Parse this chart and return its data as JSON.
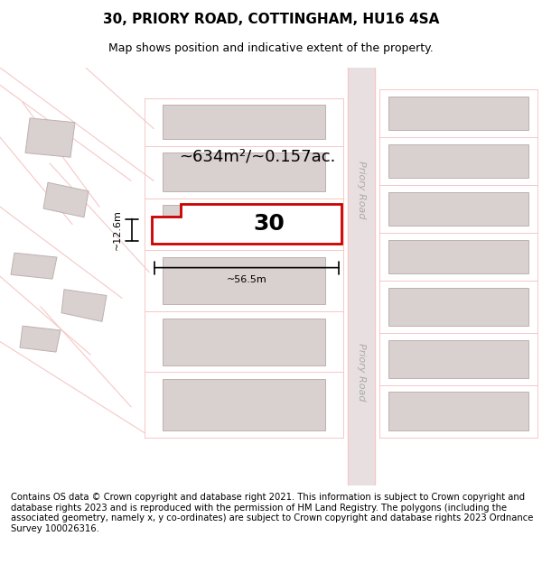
{
  "title": "30, PRIORY ROAD, COTTINGHAM, HU16 4SA",
  "subtitle": "Map shows position and indicative extent of the property.",
  "title_fontsize": 11,
  "subtitle_fontsize": 9,
  "footer_text": "Contains OS data © Crown copyright and database right 2021. This information is subject to Crown copyright and database rights 2023 and is reproduced with the permission of HM Land Registry. The polygons (including the associated geometry, namely x, y co-ordinates) are subject to Crown copyright and database rights 2023 Ordnance Survey 100026316.",
  "footer_fontsize": 7.2,
  "background_color": "#ffffff",
  "map_bg": "#f8f0f0",
  "road_color": "#f5c8c8",
  "building_color": "#d9d0d0",
  "building_edge": "#c0b0b0",
  "highlight_color": "#cc0000",
  "road_label_color": "#aaaaaa",
  "area_text": "~634m²/~0.157ac.",
  "number_label": "30",
  "width_label": "~56.5m",
  "height_label": "~12.6m"
}
